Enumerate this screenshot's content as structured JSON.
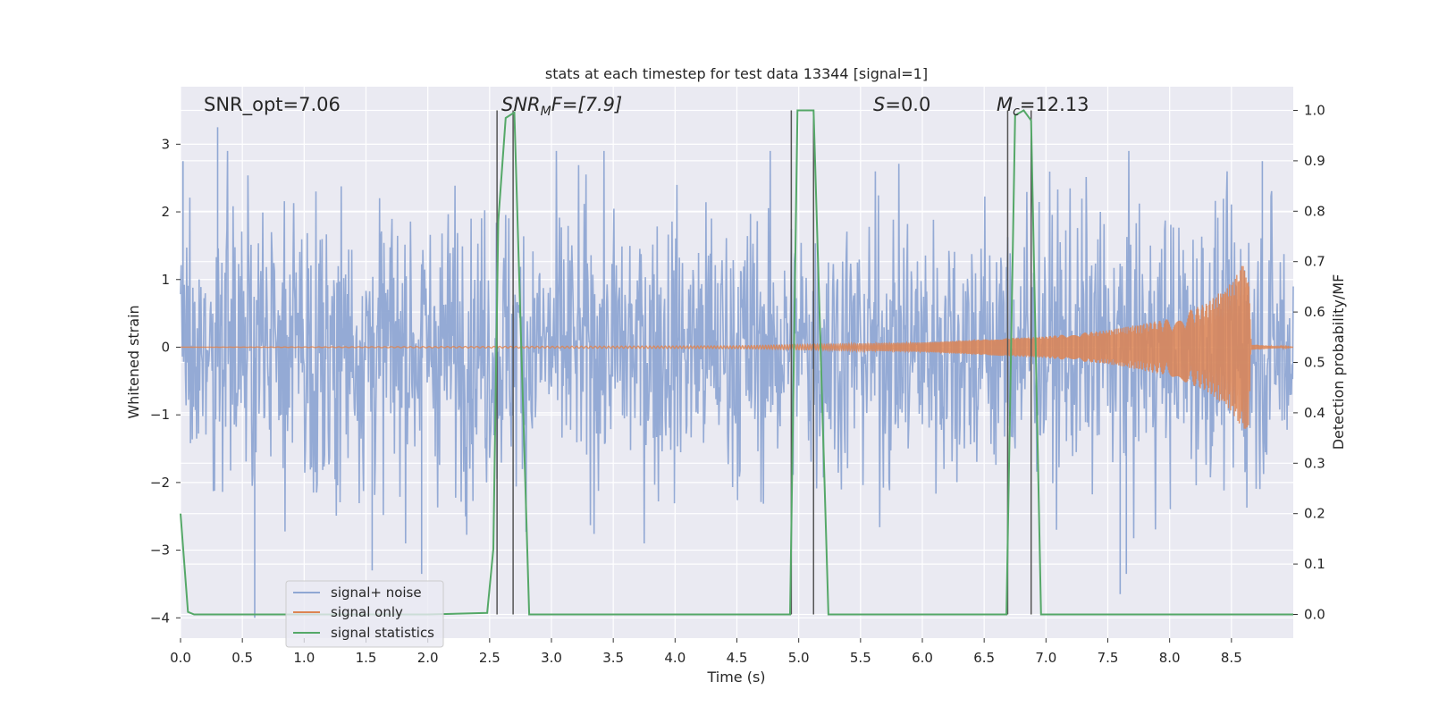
{
  "chart_data": {
    "type": "line",
    "title": "stats at each timestep for test data 13344 [signal=1]",
    "xlabel": "Time (s)",
    "ylabel_left": "Whitened strain",
    "ylabel_right": "Detection probability/MF",
    "xlim": [
      0.0,
      9.0
    ],
    "ylim_left": [
      -4.3,
      3.85
    ],
    "ylim_right": [
      -0.047,
      1.047
    ],
    "x_ticks": [
      "0.0",
      "0.5",
      "1.0",
      "1.5",
      "2.0",
      "2.5",
      "3.0",
      "3.5",
      "4.0",
      "4.5",
      "5.0",
      "5.5",
      "6.0",
      "6.5",
      "7.0",
      "7.5",
      "8.0",
      "8.5"
    ],
    "y_left_ticks": [
      "3",
      "2",
      "1",
      "0",
      "−1",
      "−2",
      "−3",
      "−4"
    ],
    "y_right_ticks": [
      "1.0",
      "0.9",
      "0.8",
      "0.7",
      "0.6",
      "0.5",
      "0.4",
      "0.3",
      "0.2",
      "0.1",
      "0.0"
    ],
    "grid": true,
    "legend_position": "lower-left",
    "annotations": {
      "snr_opt": "SNR_opt=7.06",
      "snr_mf_sym": "SNR",
      "snr_mf_sub": "M",
      "snr_mf_rest": "F=[7.9]",
      "s_sym": "S",
      "s_rest": "=0.0",
      "mc_sym": "M",
      "mc_sub": "c",
      "mc_rest": "=12.13"
    },
    "series": [
      {
        "name": "signal+ noise",
        "color": "#8fa7d3",
        "axis": "left",
        "description": "whitened noise with signal, amplitude envelope roughly ±2.5",
        "peak_values": [
          [
            0.02,
            2.75
          ],
          [
            0.3,
            3.25
          ],
          [
            0.6,
            -4.0
          ],
          [
            1.55,
            -3.3
          ],
          [
            1.95,
            -3.35
          ],
          [
            7.6,
            -3.65
          ],
          [
            7.65,
            -3.35
          ],
          [
            8.75,
            2.75
          ]
        ]
      },
      {
        "name": "signal only",
        "color": "#dd8452",
        "axis": "left",
        "description": "chirp signal growing to merger",
        "envelope": [
          [
            0.0,
            0.0
          ],
          [
            4.5,
            0.02
          ],
          [
            6.0,
            0.07
          ],
          [
            7.0,
            0.16
          ],
          [
            7.5,
            0.25
          ],
          [
            8.0,
            0.42
          ],
          [
            8.3,
            0.65
          ],
          [
            8.5,
            0.95
          ],
          [
            8.6,
            1.25
          ],
          [
            8.64,
            1.15
          ],
          [
            8.66,
            0.04
          ],
          [
            9.0,
            0.0
          ]
        ]
      },
      {
        "name": "signal statistics",
        "color": "#55a868",
        "axis": "right",
        "x": [
          0.0,
          0.06,
          0.11,
          0.5,
          1.0,
          1.5,
          2.0,
          2.48,
          2.53,
          2.57,
          2.63,
          2.7,
          2.82,
          3.5,
          4.0,
          4.5,
          4.93,
          4.99,
          5.12,
          5.24,
          5.5,
          6.0,
          6.5,
          6.68,
          6.75,
          6.82,
          6.88,
          6.96,
          7.5,
          8.0,
          8.5,
          9.0
        ],
        "y": [
          0.2,
          0.005,
          0.0,
          0.0,
          0.0,
          0.0,
          0.0,
          0.003,
          0.13,
          0.78,
          0.985,
          0.996,
          0.0,
          0.0,
          0.0,
          0.0,
          0.0,
          1.0,
          1.0,
          0.0,
          0.0,
          0.0,
          0.0,
          0.0,
          0.99,
          1.0,
          0.98,
          0.0,
          0.0,
          0.0,
          0.0,
          0.0
        ]
      }
    ],
    "vertical_lines_x": [
      2.56,
      2.69,
      4.94,
      5.12,
      6.69,
      6.88
    ]
  }
}
